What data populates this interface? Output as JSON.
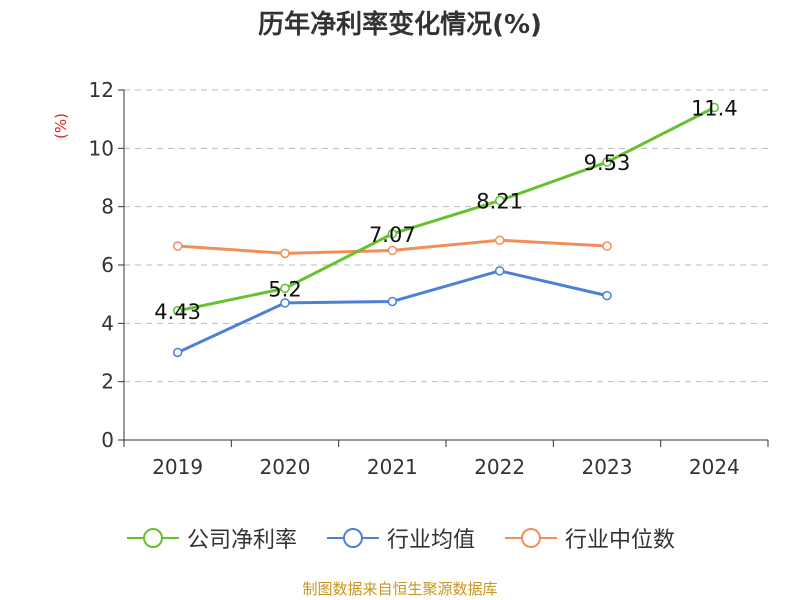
{
  "chart_data": {
    "type": "line",
    "title": "历年净利率变化情况(%)",
    "ylabel": "(%)",
    "xlabel": "",
    "ylim": [
      0,
      12
    ],
    "yticks": [
      0,
      2,
      4,
      6,
      8,
      10,
      12
    ],
    "grid": true,
    "legend_position": "bottom-center",
    "categories": [
      "2019",
      "2020",
      "2021",
      "2022",
      "2023",
      "2024"
    ],
    "series": [
      {
        "name": "公司净利率",
        "color": "#66c12e",
        "values": [
          4.43,
          5.2,
          7.07,
          8.21,
          9.53,
          11.4
        ],
        "labels": [
          "4.43",
          "5.2",
          "7.07",
          "8.21",
          "9.53",
          "11.4"
        ]
      },
      {
        "name": "行业均值",
        "color": "#4f7fd6",
        "values": [
          3.0,
          4.7,
          4.75,
          5.8,
          4.95,
          null
        ]
      },
      {
        "name": "行业中位数",
        "color": "#f28e5b",
        "values": [
          6.65,
          6.4,
          6.5,
          6.85,
          6.65,
          null
        ]
      }
    ]
  },
  "footer": {
    "source": "制图数据来自恒生聚源数据库"
  }
}
